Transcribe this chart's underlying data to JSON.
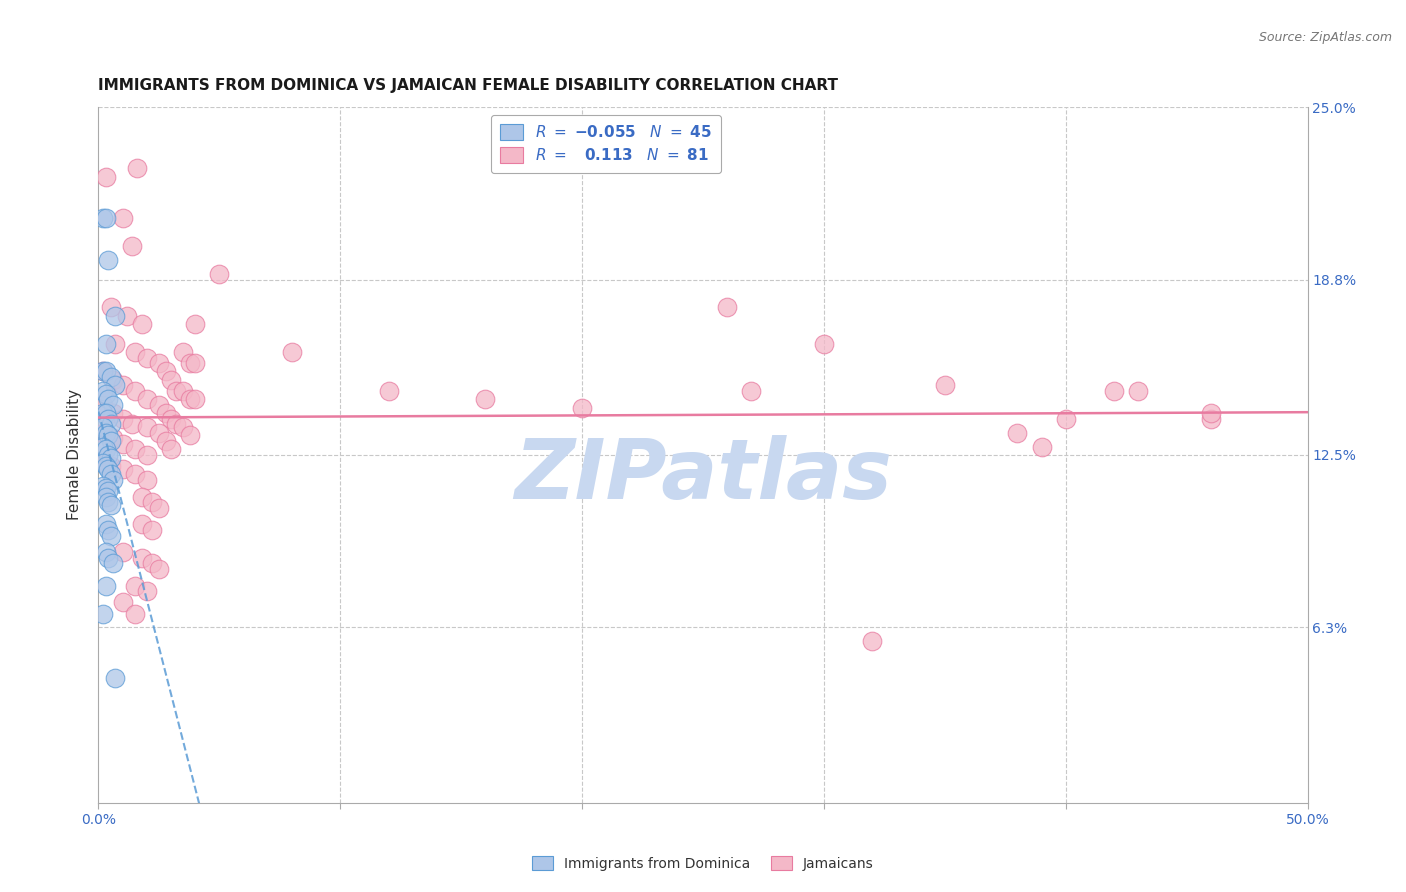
{
  "title": "IMMIGRANTS FROM DOMINICA VS JAMAICAN FEMALE DISABILITY CORRELATION CHART",
  "source": "Source: ZipAtlas.com",
  "ylabel": "Female Disability",
  "xlim": [
    0.0,
    0.5
  ],
  "ylim": [
    0.0,
    0.25
  ],
  "x_ticks": [
    0.0,
    0.1,
    0.2,
    0.3,
    0.4,
    0.5
  ],
  "y_tick_labels_right": [
    "6.3%",
    "12.5%",
    "18.8%",
    "25.0%"
  ],
  "y_tick_vals_right": [
    0.063,
    0.125,
    0.188,
    0.25
  ],
  "color_blue": "#aec6e8",
  "color_pink": "#f4b8c8",
  "line_color_blue": "#5b9bd5",
  "line_color_pink": "#e87ba0",
  "background_color": "#ffffff",
  "grid_color": "#c8c8c8",
  "watermark_color": "#c8d8f0",
  "blue_scatter_x": [
    0.002,
    0.003,
    0.004,
    0.007,
    0.003,
    0.002,
    0.003,
    0.005,
    0.007,
    0.002,
    0.003,
    0.004,
    0.006,
    0.002,
    0.003,
    0.004,
    0.005,
    0.002,
    0.003,
    0.004,
    0.005,
    0.002,
    0.003,
    0.004,
    0.005,
    0.002,
    0.003,
    0.004,
    0.005,
    0.006,
    0.002,
    0.003,
    0.004,
    0.003,
    0.004,
    0.005,
    0.003,
    0.004,
    0.005,
    0.003,
    0.004,
    0.006,
    0.003,
    0.002,
    0.007
  ],
  "blue_scatter_y": [
    0.21,
    0.21,
    0.195,
    0.175,
    0.165,
    0.155,
    0.155,
    0.153,
    0.15,
    0.148,
    0.147,
    0.145,
    0.143,
    0.14,
    0.14,
    0.138,
    0.136,
    0.135,
    0.133,
    0.132,
    0.13,
    0.128,
    0.127,
    0.125,
    0.124,
    0.122,
    0.121,
    0.12,
    0.118,
    0.116,
    0.114,
    0.113,
    0.112,
    0.11,
    0.108,
    0.107,
    0.1,
    0.098,
    0.096,
    0.09,
    0.088,
    0.086,
    0.078,
    0.068,
    0.045
  ],
  "pink_scatter_x": [
    0.003,
    0.016,
    0.01,
    0.014,
    0.005,
    0.012,
    0.018,
    0.007,
    0.015,
    0.02,
    0.002,
    0.006,
    0.01,
    0.015,
    0.02,
    0.002,
    0.006,
    0.01,
    0.014,
    0.02,
    0.002,
    0.006,
    0.01,
    0.015,
    0.02,
    0.002,
    0.005,
    0.01,
    0.015,
    0.02,
    0.025,
    0.028,
    0.03,
    0.032,
    0.025,
    0.028,
    0.03,
    0.032,
    0.025,
    0.028,
    0.03,
    0.035,
    0.038,
    0.035,
    0.038,
    0.035,
    0.038,
    0.04,
    0.04,
    0.04,
    0.018,
    0.022,
    0.025,
    0.018,
    0.022,
    0.01,
    0.018,
    0.022,
    0.025,
    0.015,
    0.02,
    0.01,
    0.015,
    0.05,
    0.08,
    0.12,
    0.16,
    0.2,
    0.26,
    0.3,
    0.35,
    0.38,
    0.42,
    0.46,
    0.32,
    0.27,
    0.46,
    0.43,
    0.4,
    0.39
  ],
  "pink_scatter_y": [
    0.225,
    0.228,
    0.21,
    0.2,
    0.178,
    0.175,
    0.172,
    0.165,
    0.162,
    0.16,
    0.155,
    0.152,
    0.15,
    0.148,
    0.145,
    0.143,
    0.14,
    0.138,
    0.136,
    0.135,
    0.133,
    0.131,
    0.129,
    0.127,
    0.125,
    0.123,
    0.121,
    0.12,
    0.118,
    0.116,
    0.158,
    0.155,
    0.152,
    0.148,
    0.143,
    0.14,
    0.138,
    0.136,
    0.133,
    0.13,
    0.127,
    0.162,
    0.158,
    0.148,
    0.145,
    0.135,
    0.132,
    0.172,
    0.158,
    0.145,
    0.11,
    0.108,
    0.106,
    0.1,
    0.098,
    0.09,
    0.088,
    0.086,
    0.084,
    0.078,
    0.076,
    0.072,
    0.068,
    0.19,
    0.162,
    0.148,
    0.145,
    0.142,
    0.178,
    0.165,
    0.15,
    0.133,
    0.148,
    0.138,
    0.058,
    0.148,
    0.14,
    0.148,
    0.138,
    0.128
  ]
}
